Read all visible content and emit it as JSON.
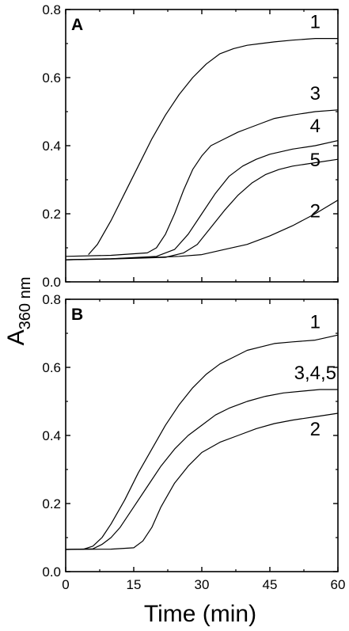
{
  "chart_data": [
    {
      "type": "line",
      "panel": "A",
      "xlabel": "Time (min)",
      "ylabel": "A360 nm",
      "xlim": [
        0,
        60
      ],
      "ylim": [
        0,
        0.8
      ],
      "x_ticks": [
        "0",
        "15",
        "30",
        "45",
        "60"
      ],
      "y_ticks": [
        "0.0",
        "0.2",
        "0.4",
        "0.6",
        "0.8"
      ],
      "grid": false,
      "series": [
        {
          "name": "1",
          "x": [
            5,
            7,
            10,
            13,
            16,
            19,
            22,
            25,
            28,
            31,
            34,
            37,
            40,
            43,
            46,
            50,
            55,
            60
          ],
          "y": [
            0.08,
            0.11,
            0.18,
            0.26,
            0.34,
            0.42,
            0.49,
            0.55,
            0.6,
            0.64,
            0.67,
            0.685,
            0.695,
            0.7,
            0.705,
            0.71,
            0.715,
            0.715
          ]
        },
        {
          "name": "2",
          "x": [
            0,
            10,
            20,
            25,
            30,
            35,
            40,
            45,
            50,
            55,
            60
          ],
          "y": [
            0.065,
            0.068,
            0.072,
            0.075,
            0.08,
            0.095,
            0.11,
            0.135,
            0.165,
            0.2,
            0.24
          ]
        },
        {
          "name": "3",
          "x": [
            0,
            10,
            18,
            20,
            22,
            24,
            26,
            28,
            30,
            32,
            35,
            38,
            40,
            43,
            46,
            50,
            55,
            60
          ],
          "y": [
            0.075,
            0.078,
            0.085,
            0.1,
            0.14,
            0.2,
            0.27,
            0.33,
            0.37,
            0.4,
            0.42,
            0.44,
            0.45,
            0.465,
            0.48,
            0.49,
            0.5,
            0.505
          ]
        },
        {
          "name": "4",
          "x": [
            0,
            10,
            20,
            24,
            27,
            30,
            33,
            36,
            39,
            42,
            45,
            50,
            55,
            60
          ],
          "y": [
            0.065,
            0.068,
            0.075,
            0.095,
            0.14,
            0.2,
            0.26,
            0.31,
            0.34,
            0.36,
            0.375,
            0.39,
            0.4,
            0.415
          ]
        },
        {
          "name": "5",
          "x": [
            0,
            10,
            22,
            26,
            29,
            32,
            35,
            38,
            41,
            44,
            47,
            50,
            55,
            60
          ],
          "y": [
            0.065,
            0.067,
            0.072,
            0.085,
            0.11,
            0.16,
            0.21,
            0.255,
            0.29,
            0.315,
            0.33,
            0.34,
            0.35,
            0.36
          ]
        }
      ],
      "labels": [
        {
          "text": "1",
          "x": 55,
          "y": 0.745
        },
        {
          "text": "3",
          "x": 55,
          "y": 0.535
        },
        {
          "text": "4",
          "x": 55,
          "y": 0.44
        },
        {
          "text": "5",
          "x": 55,
          "y": 0.34
        },
        {
          "text": "2",
          "x": 55,
          "y": 0.19
        }
      ]
    },
    {
      "type": "line",
      "panel": "B",
      "xlabel": "Time (min)",
      "ylabel": "A360 nm",
      "xlim": [
        0,
        60
      ],
      "ylim": [
        0,
        0.8
      ],
      "x_ticks": [
        "0",
        "15",
        "30",
        "45",
        "60"
      ],
      "y_ticks": [
        "0.0",
        "0.2",
        "0.4",
        "0.6",
        "0.8"
      ],
      "grid": false,
      "series": [
        {
          "name": "1",
          "x": [
            0,
            4,
            6,
            8,
            10,
            13,
            16,
            19,
            22,
            25,
            28,
            31,
            34,
            37,
            40,
            43,
            46,
            50,
            55,
            60
          ],
          "y": [
            0.065,
            0.066,
            0.075,
            0.1,
            0.14,
            0.21,
            0.29,
            0.36,
            0.43,
            0.49,
            0.54,
            0.58,
            0.61,
            0.63,
            0.65,
            0.66,
            0.67,
            0.675,
            0.68,
            0.695
          ]
        },
        {
          "name": "2",
          "x": [
            0,
            10,
            15,
            17,
            19,
            21,
            24,
            27,
            30,
            34,
            38,
            42,
            46,
            50,
            55,
            60
          ],
          "y": [
            0.065,
            0.066,
            0.07,
            0.09,
            0.13,
            0.19,
            0.26,
            0.31,
            0.35,
            0.38,
            0.4,
            0.42,
            0.435,
            0.445,
            0.455,
            0.465
          ]
        },
        {
          "name": "3,4,5",
          "x": [
            0,
            6,
            8,
            10,
            12,
            15,
            18,
            21,
            24,
            27,
            30,
            33,
            36,
            40,
            44,
            48,
            52,
            56,
            60
          ],
          "y": [
            0.065,
            0.067,
            0.08,
            0.1,
            0.13,
            0.19,
            0.25,
            0.31,
            0.36,
            0.4,
            0.43,
            0.46,
            0.48,
            0.5,
            0.515,
            0.525,
            0.53,
            0.535,
            0.535
          ]
        }
      ],
      "labels": [
        {
          "text": "1",
          "x": 55,
          "y": 0.715
        },
        {
          "text": "3,4,5",
          "x": 55,
          "y": 0.565
        },
        {
          "text": "2",
          "x": 55,
          "y": 0.4
        }
      ]
    }
  ],
  "figure": {
    "x_title": "Time (min)",
    "y_title_main": "A",
    "y_title_sub": "360 nm"
  }
}
